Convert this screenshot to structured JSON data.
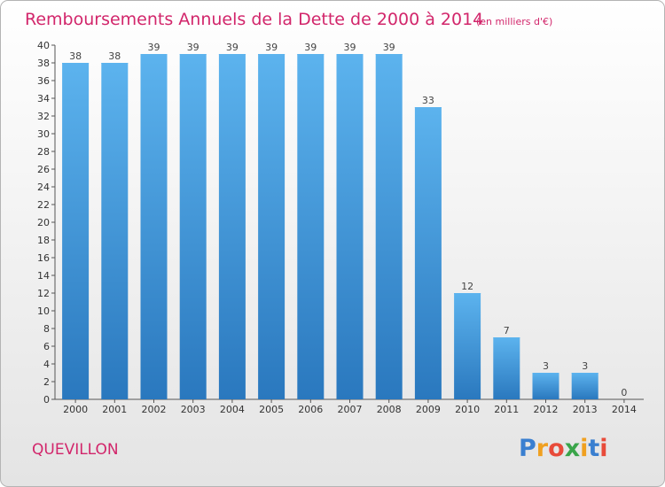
{
  "chart_data": {
    "type": "bar",
    "title": "Remboursements Annuels de la Dette de 2000 à 2014",
    "unit_note": "(en milliers d'€)",
    "categories": [
      "2000",
      "2001",
      "2002",
      "2003",
      "2004",
      "2005",
      "2006",
      "2007",
      "2008",
      "2009",
      "2010",
      "2011",
      "2012",
      "2013",
      "2014"
    ],
    "values": [
      38,
      38,
      39,
      39,
      39,
      39,
      39,
      39,
      39,
      33,
      12,
      7,
      3,
      3,
      0
    ],
    "ylim": [
      0,
      40
    ],
    "ytick_step": 2,
    "xlabel": "",
    "ylabel": "",
    "grid": false
  },
  "commune": "QUEVILLON",
  "brand": {
    "letters": [
      "P",
      "r",
      "o",
      "x",
      "i",
      "t",
      "i"
    ],
    "colors": [
      "#3a7fd0",
      "#f0a020",
      "#e84b3a",
      "#3aa54a",
      "#f0a020",
      "#3a7fd0",
      "#e84b3a"
    ]
  },
  "colors": {
    "bar_light": "#5cb3ee",
    "bar_dark": "#2a7cc4",
    "accent": "#d2266b"
  }
}
